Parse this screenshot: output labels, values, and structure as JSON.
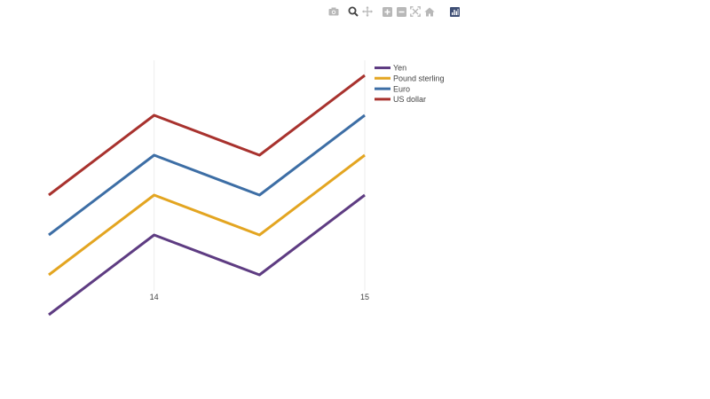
{
  "toolbar": {
    "buttons": [
      {
        "icon": "camera-icon",
        "label": "Download plot as a png"
      },
      {
        "icon": "zoom-icon",
        "label": "Zoom",
        "active": true
      },
      {
        "icon": "pan-icon",
        "label": "Pan"
      },
      {
        "icon": "zoom-in-icon",
        "label": "Zoom in"
      },
      {
        "icon": "zoom-out-icon",
        "label": "Zoom out"
      },
      {
        "icon": "autoscale-icon",
        "label": "Autoscale"
      },
      {
        "icon": "home-icon",
        "label": "Reset axes"
      },
      {
        "icon": "plotly-logo-icon",
        "label": "Produced with Plotly"
      }
    ]
  },
  "chart_data": {
    "type": "line",
    "x": [
      13.5,
      14,
      14.5,
      15
    ],
    "xlim": [
      13.5,
      15
    ],
    "xticks": [
      14,
      15
    ],
    "ylim": [
      0,
      7
    ],
    "grid": {
      "x": true,
      "y": false
    },
    "legend": "top-right",
    "xlabel": "",
    "ylabel": "",
    "title": "",
    "series": [
      {
        "name": "Yen",
        "color": "#5e3c82",
        "values": [
          0,
          2,
          1,
          3
        ]
      },
      {
        "name": "Pound sterling",
        "color": "#e3a521",
        "values": [
          1,
          3,
          2,
          4
        ]
      },
      {
        "name": "Euro",
        "color": "#3d6ea5",
        "values": [
          2,
          4,
          3,
          5
        ]
      },
      {
        "name": "US dollar",
        "color": "#a8322e",
        "values": [
          3,
          5,
          4,
          6
        ]
      }
    ]
  }
}
